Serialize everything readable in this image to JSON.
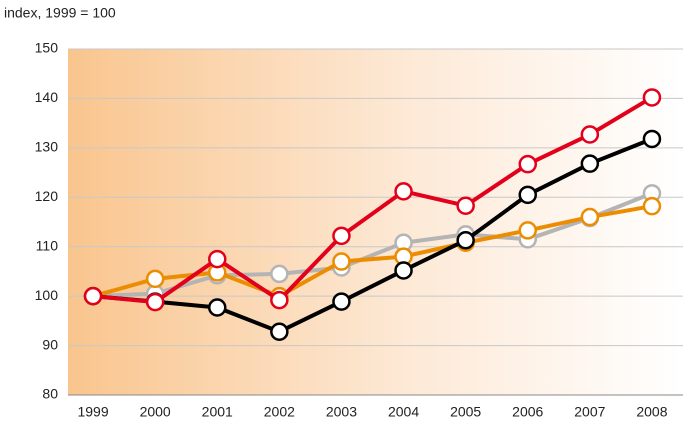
{
  "chart_data": {
    "type": "line",
    "title": "index, 1999 = 100",
    "categories": [
      "1999",
      "2000",
      "2001",
      "2002",
      "2003",
      "2004",
      "2005",
      "2006",
      "2007",
      "2008"
    ],
    "series": [
      {
        "color": "#b4b4b4",
        "values": [
          100,
          100.5,
          104.2,
          104.5,
          105.8,
          110.8,
          112.5,
          111.5,
          115.8,
          120.8
        ]
      },
      {
        "color": "#ec8c00",
        "values": [
          100,
          103.5,
          104.8,
          100,
          107,
          108,
          110.8,
          113.3,
          116,
          118.2
        ]
      },
      {
        "color": "#000000",
        "values": [
          100,
          98.9,
          97.7,
          92.8,
          98.9,
          105.2,
          111.3,
          120.5,
          126.8,
          131.8
        ]
      },
      {
        "color": "#e3001b",
        "values": [
          100,
          98.8,
          107.5,
          99.2,
          112.2,
          121.2,
          118.3,
          126.7,
          132.7,
          140.2
        ]
      }
    ],
    "ylim": [
      80,
      150
    ],
    "yticks": [
      80,
      90,
      100,
      110,
      120,
      130,
      140,
      150
    ],
    "grid": true
  }
}
